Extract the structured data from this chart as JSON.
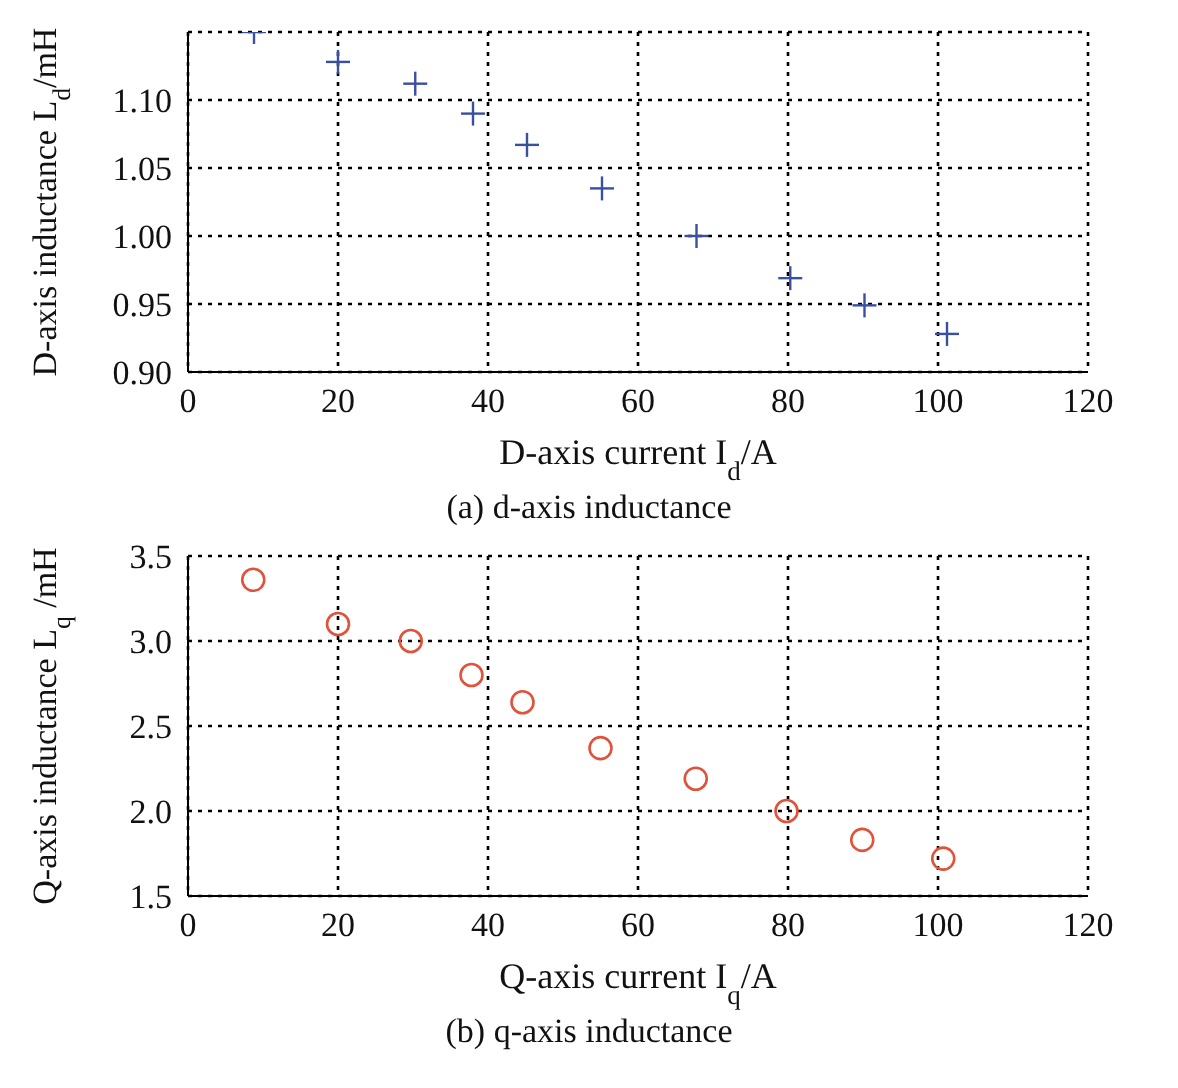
{
  "chart_data": [
    {
      "type": "scatter",
      "title": "(a) d-axis inductance",
      "xlabel": "D-axis current I$_{d}$/A",
      "ylabel": "D-axis inductance L$_{d}$/mH",
      "x": [
        8.8,
        20,
        30.3,
        38,
        45.2,
        55.2,
        67.8,
        80.3,
        90.2,
        101.2
      ],
      "series": [
        {
          "color": "#3a4fa0",
          "values": [
            1.15,
            1.128,
            1.112,
            1.09,
            1.067,
            1.035,
            1.0,
            0.969,
            0.949,
            0.928
          ]
        }
      ],
      "xlim": [
        0,
        120
      ],
      "xticks": [
        0,
        20,
        40,
        60,
        80,
        100,
        120
      ],
      "ylim": [
        0.9,
        1.15
      ],
      "yticks": [
        {
          "value": 0.9,
          "label": "0.90"
        },
        {
          "value": 0.95,
          "label": "0.95"
        },
        {
          "value": 1.0,
          "label": "1.00"
        },
        {
          "value": 1.05,
          "label": "1.05"
        },
        {
          "value": 1.1,
          "label": "1.10"
        }
      ],
      "grid": true,
      "marker": "cross",
      "legend": false
    },
    {
      "type": "scatter",
      "title": "(b) q-axis inductance",
      "xlabel": "Q-axis current I$_{q}$/A",
      "ylabel": "Q-axis inductance L$_{q}$ /mH",
      "x": [
        8.7,
        20,
        29.7,
        37.8,
        44.6,
        55,
        67.7,
        79.8,
        89.9,
        100.7
      ],
      "series": [
        {
          "color": "#e0533a",
          "values": [
            3.36,
            3.1,
            3.0,
            2.8,
            2.64,
            2.37,
            2.19,
            2.0,
            1.83,
            1.72
          ]
        }
      ],
      "xlim": [
        0,
        120
      ],
      "xticks": [
        0,
        20,
        40,
        60,
        80,
        100,
        120
      ],
      "ylim": [
        1.5,
        3.5
      ],
      "yticks": [
        {
          "value": 1.5,
          "label": "1.5"
        },
        {
          "value": 2.0,
          "label": "2.0"
        },
        {
          "value": 2.5,
          "label": "2.5"
        },
        {
          "value": 3.0,
          "label": "3.0"
        },
        {
          "value": 3.5,
          "label": "3.5"
        }
      ],
      "grid": true,
      "marker": "circle",
      "legend": false
    }
  ]
}
